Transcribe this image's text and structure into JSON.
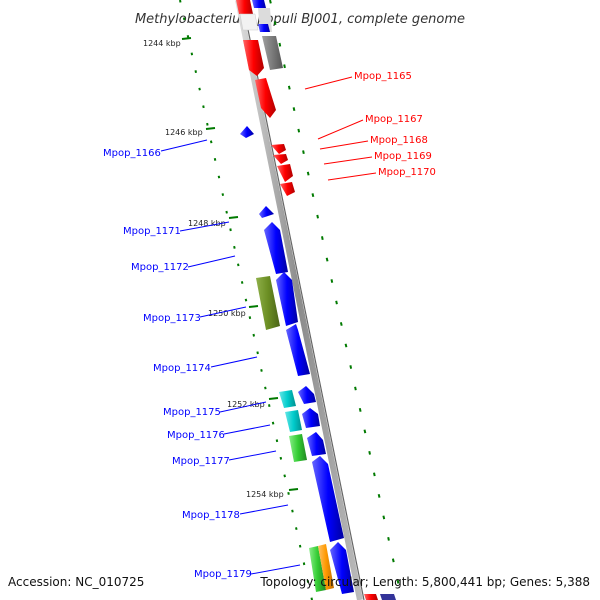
{
  "title": "Methylobacterium populi BJ001, complete genome",
  "accession": "Accession: NC_010725",
  "topology": "Topology: circular; Length: 5,800,441 bp; Genes: 5,388",
  "colors": {
    "red": "#ff0000",
    "blue": "#0000ff",
    "gray": "#808080",
    "olive": "#6b8e23",
    "cyan": "#00cccc",
    "green": "#33cc33",
    "orange": "#ff9900",
    "tick_green": "#007a00",
    "backbone": "#9a9a9a"
  },
  "scale_ticks": [
    {
      "label": "1244 kbp"
    },
    {
      "label": "1246 kbp"
    },
    {
      "label": "1248 kbp"
    },
    {
      "label": "1250 kbp"
    },
    {
      "label": "1252 kbp"
    },
    {
      "label": "1254 kbp"
    }
  ],
  "genes_right": [
    {
      "label": "Mpop_1165",
      "color": "red"
    },
    {
      "label": "Mpop_1167",
      "color": "red"
    },
    {
      "label": "Mpop_1168",
      "color": "red"
    },
    {
      "label": "Mpop_1169",
      "color": "red"
    },
    {
      "label": "Mpop_1170",
      "color": "red"
    }
  ],
  "genes_left": [
    {
      "label": "Mpop_1166",
      "color": "blue"
    },
    {
      "label": "Mpop_1171",
      "color": "blue"
    },
    {
      "label": "Mpop_1172",
      "color": "blue"
    },
    {
      "label": "Mpop_1173",
      "color": "blue"
    },
    {
      "label": "Mpop_1174",
      "color": "blue"
    },
    {
      "label": "Mpop_1175",
      "color": "blue"
    },
    {
      "label": "Mpop_1176",
      "color": "blue"
    },
    {
      "label": "Mpop_1177",
      "color": "blue"
    },
    {
      "label": "Mpop_1178",
      "color": "blue"
    },
    {
      "label": "Mpop_1179",
      "color": "blue"
    }
  ]
}
